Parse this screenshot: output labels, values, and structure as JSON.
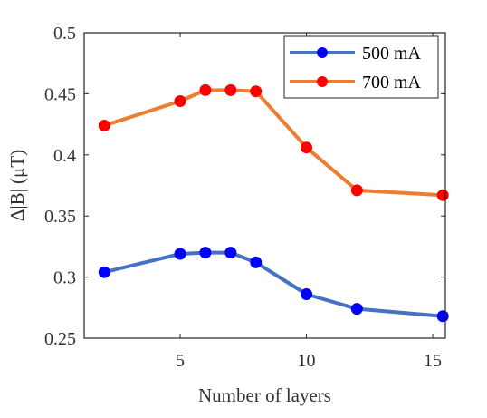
{
  "chart_data": {
    "type": "line",
    "xlabel": "Number of layers",
    "ylabel": "Δ|B| (μT)",
    "xlim": [
      1.2,
      15.5
    ],
    "ylim": [
      0.25,
      0.5
    ],
    "xticks": [
      5,
      10,
      15
    ],
    "yticks": [
      0.25,
      0.3,
      0.35,
      0.4,
      0.45,
      0.5
    ],
    "xtick_labels": [
      "5",
      "10",
      "15"
    ],
    "ytick_labels": [
      "0.25",
      "0.3",
      "0.35",
      "0.4",
      "0.45",
      "0.5"
    ],
    "grid": false,
    "legend_position": "top-right",
    "series": [
      {
        "name": "500 mA",
        "line_color": "#4472C4",
        "marker_color": "#0000FF",
        "x": [
          2,
          5,
          6,
          7,
          8,
          10,
          12,
          15.4
        ],
        "y": [
          0.304,
          0.319,
          0.32,
          0.32,
          0.312,
          0.286,
          0.274,
          0.268
        ]
      },
      {
        "name": "700 mA",
        "line_color": "#ED7D31",
        "marker_color": "#FF0000",
        "x": [
          2,
          5,
          6,
          7,
          8,
          10,
          12,
          15.4
        ],
        "y": [
          0.424,
          0.444,
          0.453,
          0.453,
          0.452,
          0.406,
          0.371,
          0.367
        ]
      }
    ]
  }
}
